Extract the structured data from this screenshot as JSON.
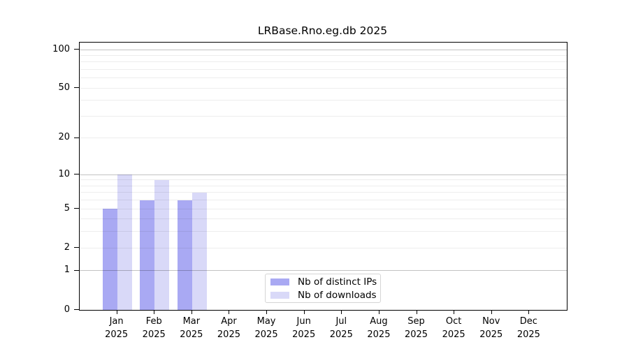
{
  "chart_data": {
    "type": "bar",
    "title": "LRBase.Rno.eg.db 2025",
    "scale": "log10(1+v)",
    "ylim": [
      0,
      100
    ],
    "grid": true,
    "legend_position": "bottom-center-inside",
    "x_axis": {
      "months": [
        "Jan",
        "Feb",
        "Mar",
        "Apr",
        "May",
        "Jun",
        "Jul",
        "Aug",
        "Sep",
        "Oct",
        "Nov",
        "Dec"
      ],
      "year": "2025"
    },
    "y_axis": {
      "ticks": [
        0,
        1,
        2,
        5,
        10,
        20,
        50,
        100
      ],
      "major_gridlines": [
        1,
        10,
        100
      ],
      "minor_gridlines": [
        2,
        3,
        4,
        5,
        6,
        7,
        8,
        9,
        20,
        30,
        40,
        50,
        60,
        70,
        80,
        90
      ]
    },
    "series": [
      {
        "name": "Nb of distinct IPs",
        "color": "#a9a9f3",
        "values": [
          5,
          6,
          6,
          0,
          0,
          0,
          0,
          0,
          0,
          0,
          0,
          0
        ]
      },
      {
        "name": "Nb of downloads",
        "color": "#d9d9f8",
        "values": [
          10,
          9,
          7,
          0,
          0,
          0,
          0,
          0,
          0,
          0,
          0,
          0
        ]
      }
    ],
    "colors": {
      "axis": "#000000",
      "major_grid": "rgba(0,0,0,0.24)",
      "minor_grid": "rgba(0,0,0,0.07)",
      "text": "#000000"
    }
  }
}
